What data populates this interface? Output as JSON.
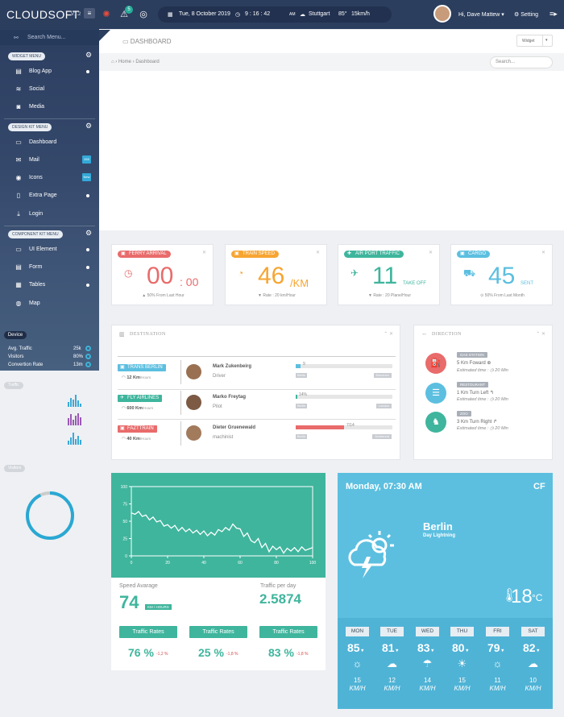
{
  "topbar": {
    "logo": "CLOUDSOFT",
    "version": "V1.2",
    "notification_count": "5",
    "date": "Tue, 8 October 2019",
    "time": "9 : 16 : 42",
    "time_suffix": "AM",
    "weather": "Stuttgart",
    "weather_temp": "85°",
    "weather_wind": "15km/h",
    "greeting": "Hi, Dave Mattew",
    "setting_label": "Setting"
  },
  "sidebar": {
    "search_placeholder": "Search Menu...",
    "widget_menu": "WIDGET MENU",
    "widget_items": [
      {
        "label": "Blog App"
      },
      {
        "label": "Social"
      },
      {
        "label": "Media"
      }
    ],
    "design_menu": "DESIGN KIT MENU",
    "design_items": [
      {
        "label": "Dashboard"
      },
      {
        "label": "Mail",
        "badge": "265"
      },
      {
        "label": "Icons",
        "badge": "New"
      },
      {
        "label": "Extra Page"
      },
      {
        "label": "Login"
      }
    ],
    "component_menu": "COMPONENT KIT MENU",
    "component_items": [
      {
        "label": "UI Element"
      },
      {
        "label": "Form"
      },
      {
        "label": "Tables"
      },
      {
        "label": "Map"
      }
    ],
    "device_label": "Device",
    "device_rows": [
      {
        "label": "Avg. Traffic",
        "value": "25k"
      },
      {
        "label": "Visitors",
        "value": "80%"
      },
      {
        "label": "Convertion Rate",
        "value": "13m"
      }
    ],
    "traffic_label": "Traffic",
    "visitors_label": "Visitors",
    "visitors_progress": 0.93
  },
  "header": {
    "title": "DASHBOARD",
    "widget_button": "Widget",
    "breadcrumb_home": "Home",
    "breadcrumb_current": "Dashboard",
    "search_placeholder": "Search..."
  },
  "stats": [
    {
      "tag": "FERRY ARRIVAL",
      "value": "00",
      "unit": ": 00",
      "foot": "50%  From Last Hour",
      "color": "#e96b6b"
    },
    {
      "tag": "TRAIN SPEED",
      "value": "46",
      "unit": "/KM",
      "foot": "Rate : 20 km/Hour",
      "color": "#f7a532"
    },
    {
      "tag": "AIR PORT TRAFFIC",
      "value": "11",
      "unit": "TAKE OFF",
      "foot": "Rate : 20 Plane/Hour",
      "color": "#3fb59d"
    },
    {
      "tag": "CARGO",
      "value": "45",
      "unit": "SENT",
      "foot": "50% From Last Month",
      "color": "#5cbfe0"
    }
  ],
  "destination": {
    "title": "DESTINATION",
    "rows": [
      {
        "tag": "TRANS BERLIN",
        "sub_value": "12 Km",
        "sub_unit": "/Hours",
        "name": "Mark Zukenbeirg",
        "role": "Driver",
        "pct_label": "9",
        "progress": 0.05,
        "from": "Berlin",
        "to": "Munchen",
        "color": "#5cbfe0"
      },
      {
        "tag": "FLY AIRLINES",
        "sub_value": "600 Km",
        "sub_unit": "/Hours",
        "name": "Marko Freytag",
        "role": "Pilot",
        "pct_label": "14%",
        "progress": 0.02,
        "from": "Berlin",
        "to": "London",
        "color": "#3fb59d"
      },
      {
        "tag": "FAZTTRAIN",
        "sub_value": "40 Km",
        "sub_unit": "/Hours",
        "name": "Dieter Gruenewald",
        "role": "machinist",
        "pct_label": "7/14",
        "progress": 0.5,
        "from": "Berlin",
        "to": "Dortmund",
        "color": "#e96b6b"
      }
    ]
  },
  "direction": {
    "title": "DIRECTION",
    "items": [
      {
        "tag": "GAS STATION",
        "text": "5 Km Foward",
        "time_label": "Estimated time :",
        "time": "20 Min",
        "color": "#e96b6b"
      },
      {
        "tag": "RESTOURANT",
        "text": "1 Km Turn Left",
        "time_label": "Estimated time :",
        "time": "20 Min",
        "color": "#5cbfe0"
      },
      {
        "tag": "ZOO",
        "text": "3 Km Turn Right",
        "time_label": "Estimated time :",
        "time": "20 Min",
        "color": "#3fb59d"
      }
    ]
  },
  "traffic": {
    "speed_label": "Speed Avarage",
    "speed_value": "74",
    "speed_unit": "KM / HOURS",
    "perday_label": "Traffic per day",
    "perday_value": "2.5874",
    "rates": [
      {
        "label": "Traffic Rates",
        "pct": "76 %",
        "delta": "-1,2 %"
      },
      {
        "label": "Traffic Rates",
        "pct": "25 %",
        "delta": "-1,8 %"
      },
      {
        "label": "Traffic Rates",
        "pct": "83 %",
        "delta": "-1,8 %"
      }
    ]
  },
  "chart_data": {
    "type": "line",
    "xlim": [
      0,
      100
    ],
    "ylim": [
      0,
      100
    ],
    "xticks": [
      "0",
      "20",
      "40",
      "60",
      "80",
      "100"
    ],
    "yticks": [
      "0",
      "25",
      "50",
      "75",
      "100"
    ],
    "x": [
      0,
      2,
      4,
      6,
      8,
      10,
      12,
      14,
      16,
      18,
      20,
      22,
      24,
      26,
      28,
      30,
      32,
      34,
      36,
      38,
      40,
      42,
      44,
      46,
      48,
      50,
      52,
      54,
      56,
      58,
      60,
      62,
      64,
      66,
      68,
      70,
      72,
      74,
      76,
      78,
      80,
      82,
      84,
      86,
      88,
      90,
      92,
      94,
      96,
      98,
      100
    ],
    "values": [
      62,
      60,
      64,
      57,
      59,
      52,
      56,
      49,
      51,
      43,
      45,
      40,
      44,
      36,
      41,
      35,
      39,
      33,
      37,
      31,
      36,
      29,
      34,
      30,
      38,
      35,
      41,
      37,
      46,
      40,
      39,
      28,
      33,
      22,
      19,
      25,
      12,
      18,
      6,
      14,
      9,
      13,
      4,
      11,
      7,
      12,
      6,
      13,
      8,
      10,
      12
    ]
  },
  "weather": {
    "datetime": "Monday, 07:30 AM",
    "units": "CF",
    "city": "Berlin",
    "condition": "Day Lightning",
    "temp": "18",
    "temp_unit": "°C",
    "days": [
      {
        "day": "MON",
        "temp": "85",
        "icon": "☼",
        "speed": "15",
        "unit": "KM/H"
      },
      {
        "day": "TUE",
        "temp": "81",
        "icon": "☁",
        "speed": "12",
        "unit": "KM/H"
      },
      {
        "day": "WED",
        "temp": "83",
        "icon": "☂",
        "speed": "14",
        "unit": "KM/H"
      },
      {
        "day": "THU",
        "temp": "80",
        "icon": "☀",
        "speed": "15",
        "unit": "KM/H"
      },
      {
        "day": "FRI",
        "temp": "79",
        "icon": "☼",
        "speed": "11",
        "unit": "KM/H"
      },
      {
        "day": "SAT",
        "temp": "82",
        "icon": "☁",
        "speed": "10",
        "unit": "KM/H"
      }
    ]
  }
}
